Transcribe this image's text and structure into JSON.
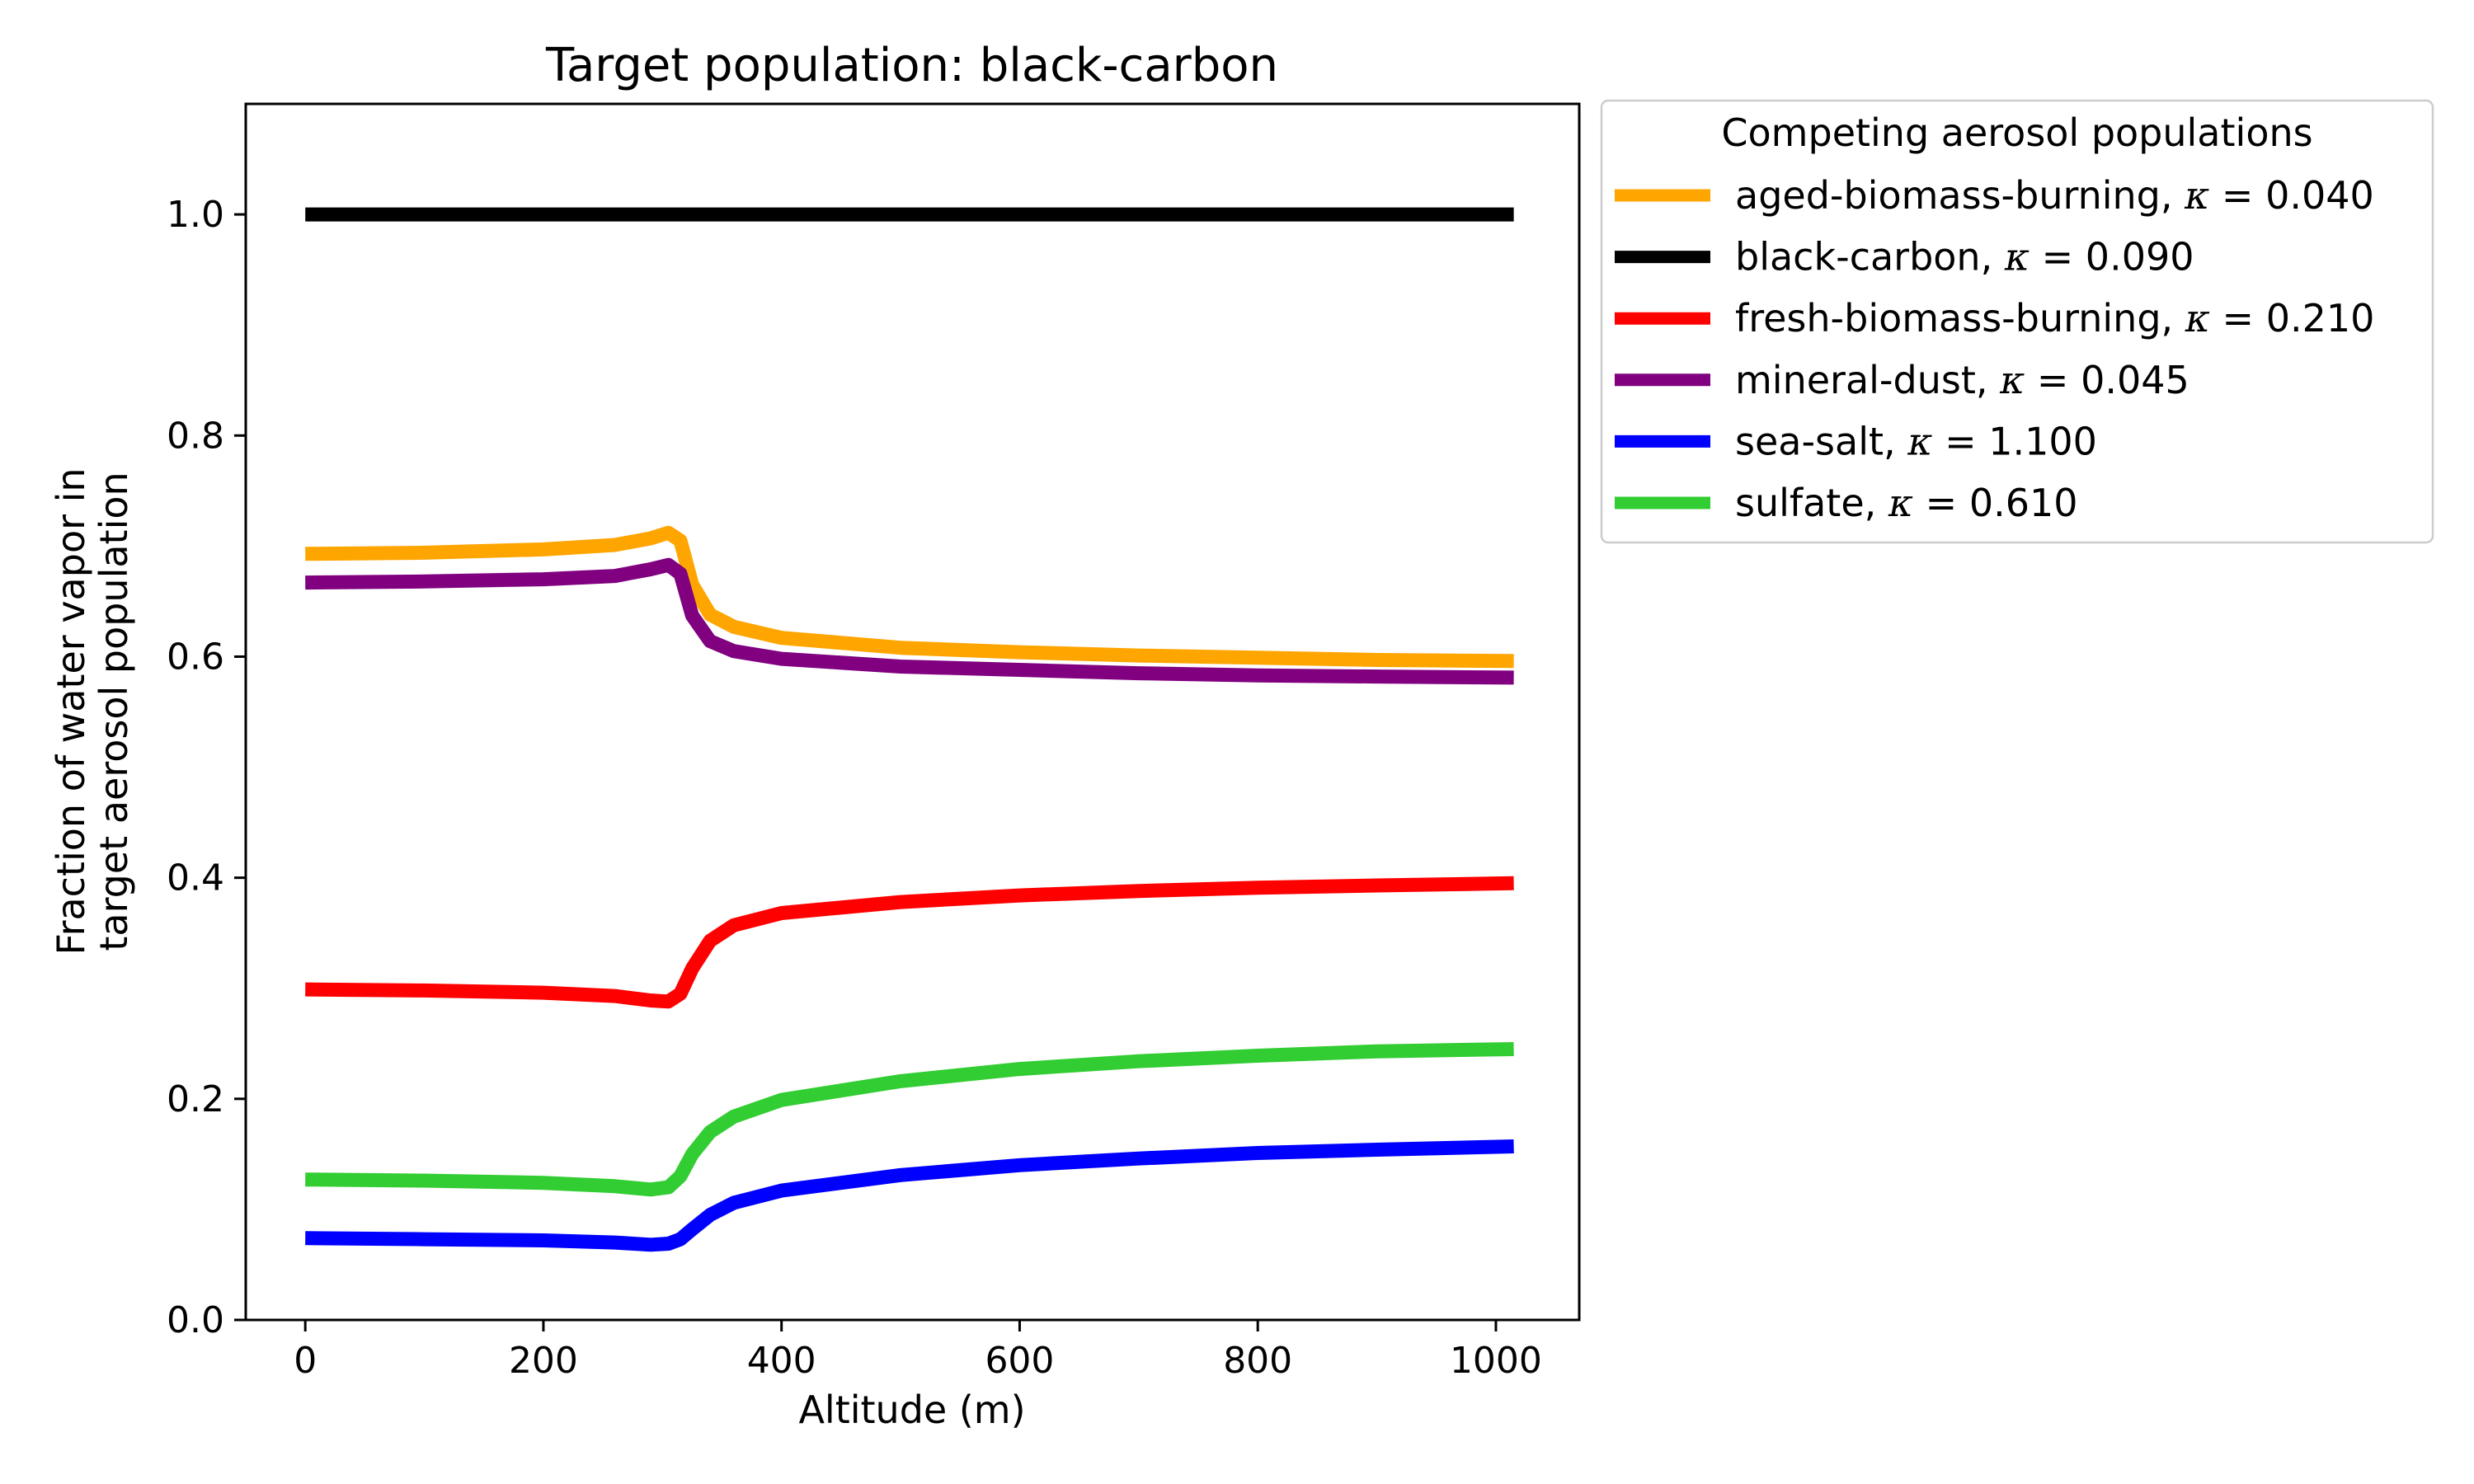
{
  "chart_data": {
    "type": "line",
    "title": "Target population: black-carbon",
    "xlabel": "Altitude (m)",
    "ylabel_lines": [
      "Fraction of water vapor in",
      "target aerosol population"
    ],
    "xlim": [
      -50,
      1070
    ],
    "ylim": [
      0,
      1.1
    ],
    "xticks": [
      0,
      200,
      400,
      600,
      800,
      1000
    ],
    "xtick_labels": [
      "0",
      "200",
      "400",
      "600",
      "800",
      "1000"
    ],
    "yticks": [
      0,
      0.2,
      0.4,
      0.6,
      0.8,
      1.0
    ],
    "ytick_labels": [
      "0.0",
      "0.2",
      "0.4",
      "0.6",
      "0.8",
      "1.0"
    ],
    "grid": false,
    "legend": {
      "title": "Competing aerosol populations",
      "placement": "outside-top-right"
    },
    "series": [
      {
        "name": "aged-biomass-burning",
        "kappa": "0.040",
        "color": "#FFA500",
        "points": [
          [
            0,
            0.693
          ],
          [
            100,
            0.694
          ],
          [
            200,
            0.697
          ],
          [
            260,
            0.701
          ],
          [
            290,
            0.707
          ],
          [
            305,
            0.712
          ],
          [
            315,
            0.705
          ],
          [
            325,
            0.665
          ],
          [
            340,
            0.638
          ],
          [
            360,
            0.627
          ],
          [
            400,
            0.617
          ],
          [
            500,
            0.608
          ],
          [
            600,
            0.604
          ],
          [
            700,
            0.601
          ],
          [
            800,
            0.599
          ],
          [
            900,
            0.597
          ],
          [
            1015,
            0.596
          ]
        ]
      },
      {
        "name": "black-carbon",
        "kappa": "0.090",
        "color": "#000000",
        "points": [
          [
            0,
            1.0
          ],
          [
            1015,
            1.0
          ]
        ]
      },
      {
        "name": "fresh-biomass-burning",
        "kappa": "0.210",
        "color": "#FF0000",
        "points": [
          [
            0,
            0.299
          ],
          [
            100,
            0.298
          ],
          [
            200,
            0.296
          ],
          [
            260,
            0.293
          ],
          [
            290,
            0.289
          ],
          [
            305,
            0.288
          ],
          [
            315,
            0.295
          ],
          [
            325,
            0.318
          ],
          [
            340,
            0.343
          ],
          [
            360,
            0.357
          ],
          [
            400,
            0.368
          ],
          [
            500,
            0.378
          ],
          [
            600,
            0.384
          ],
          [
            700,
            0.388
          ],
          [
            800,
            0.391
          ],
          [
            900,
            0.393
          ],
          [
            1015,
            0.395
          ]
        ]
      },
      {
        "name": "mineral-dust",
        "kappa": "0.045",
        "color": "#800080",
        "points": [
          [
            0,
            0.667
          ],
          [
            100,
            0.668
          ],
          [
            200,
            0.67
          ],
          [
            260,
            0.673
          ],
          [
            290,
            0.679
          ],
          [
            305,
            0.683
          ],
          [
            315,
            0.675
          ],
          [
            325,
            0.637
          ],
          [
            340,
            0.614
          ],
          [
            360,
            0.605
          ],
          [
            400,
            0.598
          ],
          [
            500,
            0.591
          ],
          [
            600,
            0.588
          ],
          [
            700,
            0.585
          ],
          [
            800,
            0.583
          ],
          [
            900,
            0.582
          ],
          [
            1015,
            0.581
          ]
        ]
      },
      {
        "name": "sea-salt",
        "kappa": "1.100",
        "color": "#0000FF",
        "points": [
          [
            0,
            0.074
          ],
          [
            100,
            0.073
          ],
          [
            200,
            0.072
          ],
          [
            260,
            0.07
          ],
          [
            290,
            0.068
          ],
          [
            305,
            0.069
          ],
          [
            315,
            0.073
          ],
          [
            325,
            0.082
          ],
          [
            340,
            0.095
          ],
          [
            360,
            0.106
          ],
          [
            400,
            0.117
          ],
          [
            500,
            0.131
          ],
          [
            600,
            0.14
          ],
          [
            700,
            0.146
          ],
          [
            800,
            0.151
          ],
          [
            900,
            0.154
          ],
          [
            1015,
            0.157
          ]
        ]
      },
      {
        "name": "sulfate",
        "kappa": "0.610",
        "color": "#32CD32",
        "points": [
          [
            0,
            0.127
          ],
          [
            100,
            0.126
          ],
          [
            200,
            0.124
          ],
          [
            260,
            0.121
          ],
          [
            290,
            0.118
          ],
          [
            305,
            0.12
          ],
          [
            315,
            0.13
          ],
          [
            325,
            0.15
          ],
          [
            340,
            0.17
          ],
          [
            360,
            0.184
          ],
          [
            400,
            0.199
          ],
          [
            500,
            0.216
          ],
          [
            600,
            0.227
          ],
          [
            700,
            0.234
          ],
          [
            800,
            0.239
          ],
          [
            900,
            0.243
          ],
          [
            1015,
            0.245
          ]
        ]
      }
    ]
  }
}
